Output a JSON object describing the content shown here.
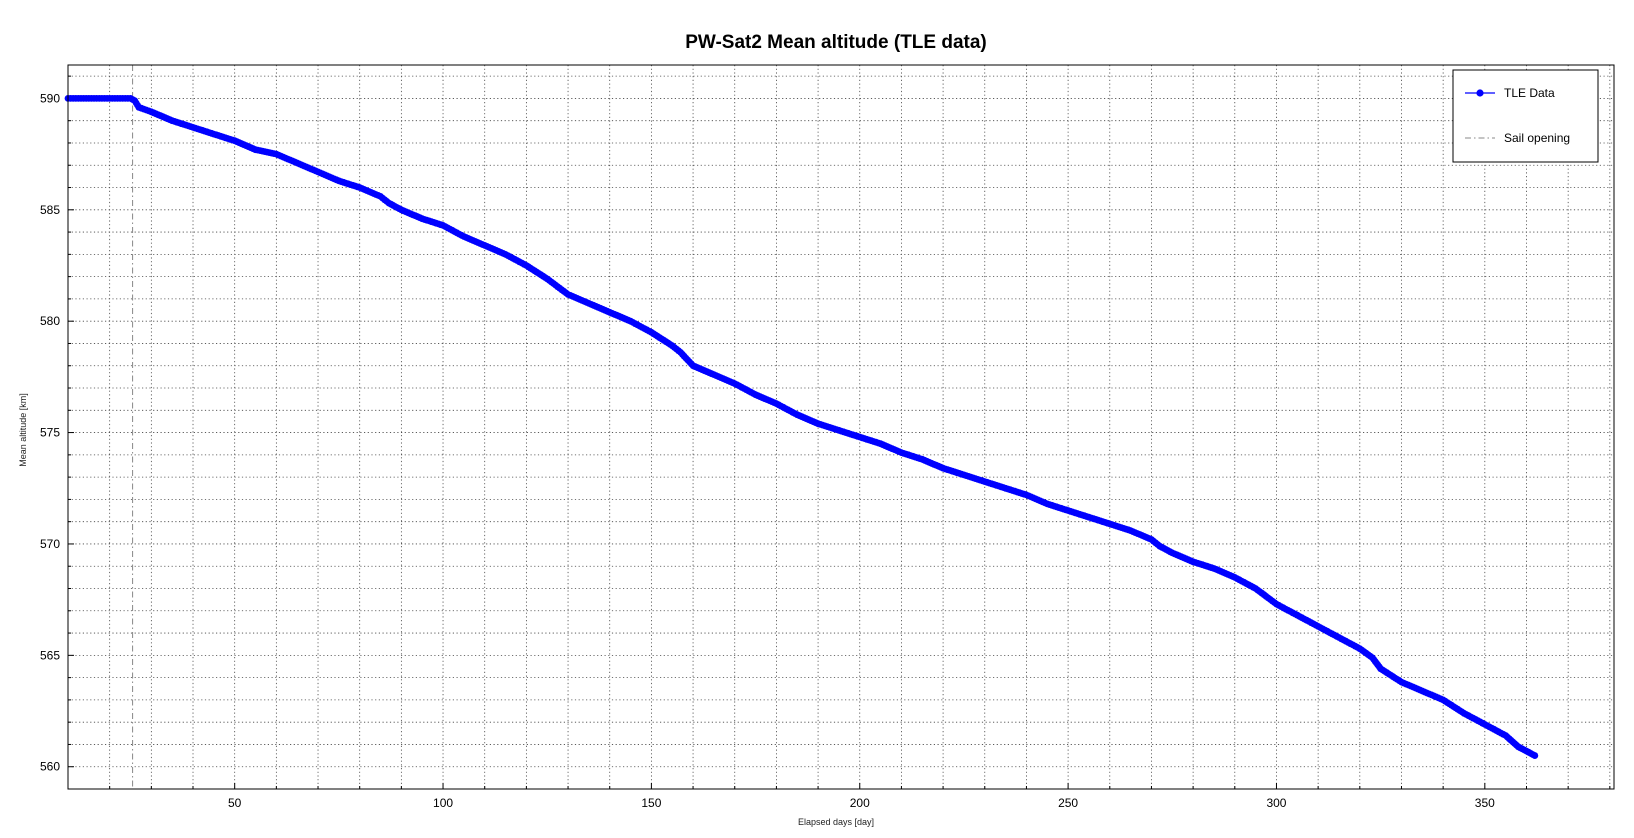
{
  "chart_data": {
    "type": "line",
    "title": "PW-Sat2 Mean altitude (TLE data)",
    "xlabel": "Elapsed days [day]",
    "ylabel": "Mean altitude [km]",
    "xlim": [
      10,
      381
    ],
    "ylim": [
      559,
      591.5
    ],
    "xticks": [
      50,
      100,
      150,
      200,
      250,
      300,
      350
    ],
    "yticks": [
      560,
      565,
      570,
      575,
      580,
      585,
      590
    ],
    "x_minor_step": 10,
    "y_minor_step": 1,
    "grid": true,
    "legend_position": "top-right",
    "legend": [
      "TLE Data",
      "Sail opening"
    ],
    "series": [
      {
        "name": "TLE Data",
        "color": "#0000ff",
        "marker": "circle",
        "x": [
          10,
          15,
          20,
          25,
          26,
          27,
          30,
          35,
          40,
          45,
          50,
          55,
          60,
          65,
          70,
          75,
          80,
          85,
          87,
          90,
          95,
          100,
          105,
          110,
          115,
          120,
          125,
          130,
          135,
          140,
          145,
          150,
          155,
          157,
          160,
          165,
          170,
          175,
          180,
          185,
          190,
          195,
          200,
          205,
          210,
          215,
          220,
          225,
          230,
          235,
          240,
          245,
          250,
          255,
          260,
          265,
          270,
          272,
          275,
          280,
          285,
          290,
          295,
          300,
          305,
          310,
          315,
          320,
          323,
          325,
          330,
          335,
          340,
          345,
          350,
          355,
          358,
          362
        ],
        "y": [
          590,
          590,
          590,
          590,
          589.9,
          589.6,
          589.4,
          589.0,
          588.7,
          588.4,
          588.1,
          587.7,
          587.5,
          587.1,
          586.7,
          586.3,
          586.0,
          585.6,
          585.3,
          585.0,
          584.6,
          584.3,
          583.8,
          583.4,
          583.0,
          582.5,
          581.9,
          581.2,
          580.8,
          580.4,
          580.0,
          579.5,
          578.9,
          578.6,
          578.0,
          577.6,
          577.2,
          576.7,
          576.3,
          575.8,
          575.4,
          575.1,
          574.8,
          574.5,
          574.1,
          573.8,
          573.4,
          573.1,
          572.8,
          572.5,
          572.2,
          571.8,
          571.5,
          571.2,
          570.9,
          570.6,
          570.2,
          569.9,
          569.6,
          569.2,
          568.9,
          568.5,
          568.0,
          567.3,
          566.8,
          566.3,
          565.8,
          565.3,
          564.9,
          564.4,
          563.8,
          563.4,
          563.0,
          562.4,
          561.9,
          561.4,
          560.9,
          560.5
        ]
      }
    ],
    "markers": [
      {
        "name": "Sail opening",
        "x": 25.5,
        "style": "dash-dot",
        "color": "#888888"
      }
    ]
  }
}
